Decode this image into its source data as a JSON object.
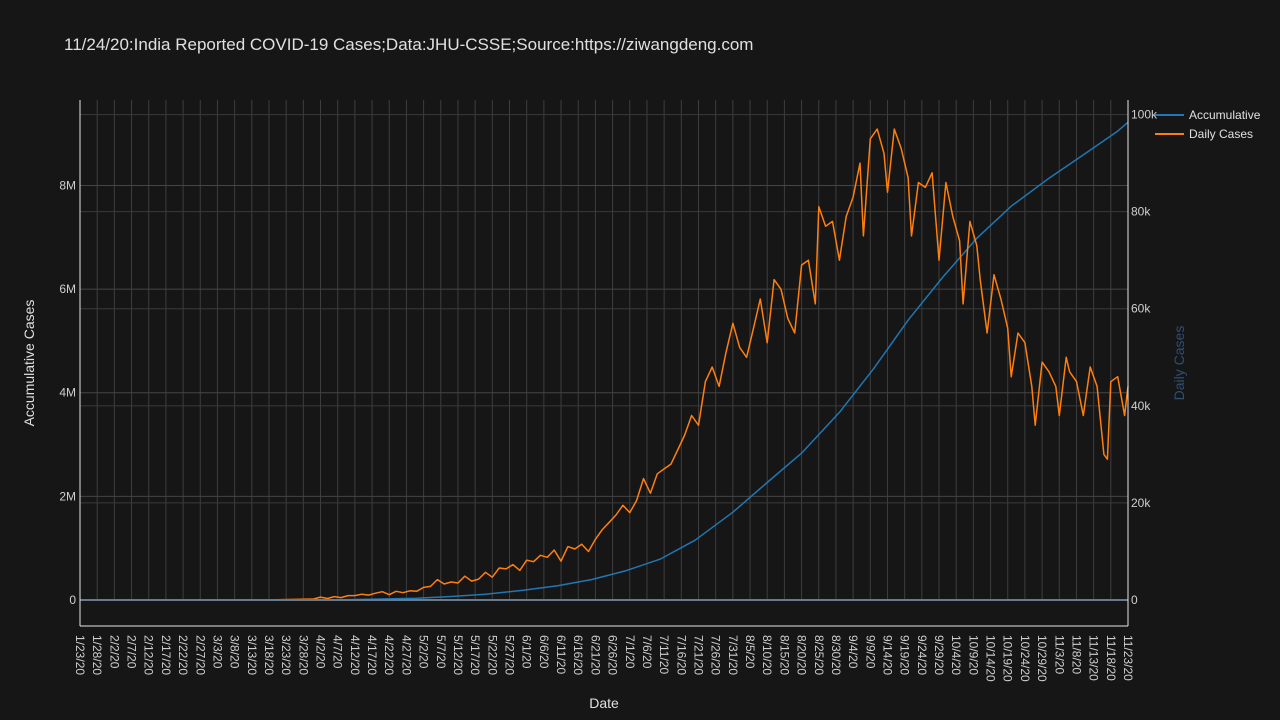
{
  "chart_data": {
    "type": "line",
    "title": "11/24/20:India Reported COVID-19 Cases;Data:JHU-CSSE;Source:https://ziwangdeng.com",
    "xlabel": "Date",
    "ylabel": "Accumulative Cases",
    "y2label": "Daily Cases",
    "x_start": "2020-01-23",
    "x_end": "2020-11-23",
    "x_tick_labels": [
      "1/23/20",
      "1/28/20",
      "2/2/20",
      "2/7/20",
      "2/12/20",
      "2/17/20",
      "2/22/20",
      "2/27/20",
      "3/3/20",
      "3/8/20",
      "3/13/20",
      "3/18/20",
      "3/23/20",
      "3/28/20",
      "4/2/20",
      "4/7/20",
      "4/12/20",
      "4/17/20",
      "4/22/20",
      "4/27/20",
      "5/2/20",
      "5/7/20",
      "5/12/20",
      "5/17/20",
      "5/22/20",
      "5/27/20",
      "6/1/20",
      "6/6/20",
      "6/11/20",
      "6/16/20",
      "6/21/20",
      "6/26/20",
      "7/1/20",
      "7/6/20",
      "7/11/20",
      "7/16/20",
      "7/21/20",
      "7/26/20",
      "7/31/20",
      "8/5/20",
      "8/10/20",
      "8/15/20",
      "8/20/20",
      "8/25/20",
      "8/30/20",
      "9/4/20",
      "9/9/20",
      "9/14/20",
      "9/19/20",
      "9/24/20",
      "9/29/20",
      "10/4/20",
      "10/9/20",
      "10/14/20",
      "10/19/20",
      "10/24/20",
      "10/29/20",
      "11/3/20",
      "11/8/20",
      "11/13/20",
      "11/18/20",
      "11/23/20"
    ],
    "y_ticks": [
      {
        "value": 0,
        "label": "0"
      },
      {
        "value": 2000000,
        "label": "2M"
      },
      {
        "value": 4000000,
        "label": "4M"
      },
      {
        "value": 6000000,
        "label": "6M"
      },
      {
        "value": 8000000,
        "label": "8M"
      }
    ],
    "y2_ticks": [
      {
        "value": 0,
        "label": "0"
      },
      {
        "value": 20000,
        "label": "20k"
      },
      {
        "value": 40000,
        "label": "40k"
      },
      {
        "value": 60000,
        "label": "60k"
      },
      {
        "value": 80000,
        "label": "80k"
      },
      {
        "value": 100000,
        "label": "100k"
      }
    ],
    "ylim": [
      0,
      9650000
    ],
    "y2lim": [
      0,
      103000
    ],
    "grid": true,
    "legend_position": "top-right",
    "series": [
      {
        "name": "Accumulative",
        "axis": "y",
        "color": "#1f77b4",
        "points": [
          [
            "2020-01-23",
            0
          ],
          [
            "2020-03-01",
            3
          ],
          [
            "2020-03-20",
            250
          ],
          [
            "2020-03-31",
            1400
          ],
          [
            "2020-04-10",
            7600
          ],
          [
            "2020-04-20",
            18500
          ],
          [
            "2020-04-30",
            35000
          ],
          [
            "2020-05-10",
            67000
          ],
          [
            "2020-05-20",
            112000
          ],
          [
            "2020-05-31",
            190000
          ],
          [
            "2020-06-10",
            276000
          ],
          [
            "2020-06-20",
            396000
          ],
          [
            "2020-06-30",
            567000
          ],
          [
            "2020-07-10",
            793000
          ],
          [
            "2020-07-20",
            1155000
          ],
          [
            "2020-07-31",
            1695000
          ],
          [
            "2020-08-10",
            2268000
          ],
          [
            "2020-08-20",
            2836000
          ],
          [
            "2020-08-31",
            3621000
          ],
          [
            "2020-09-10",
            4466000
          ],
          [
            "2020-09-20",
            5400000
          ],
          [
            "2020-09-30",
            6225000
          ],
          [
            "2020-10-10",
            6980000
          ],
          [
            "2020-10-20",
            7600000
          ],
          [
            "2020-10-31",
            8140000
          ],
          [
            "2020-11-10",
            8590000
          ],
          [
            "2020-11-20",
            9050000
          ],
          [
            "2020-11-23",
            9220000
          ]
        ]
      },
      {
        "name": "Daily Cases",
        "axis": "y2",
        "color": "#ff7f0e",
        "points": [
          [
            "2020-01-23",
            0
          ],
          [
            "2020-03-20",
            50
          ],
          [
            "2020-03-31",
            200
          ],
          [
            "2020-04-02",
            600
          ],
          [
            "2020-04-04",
            300
          ],
          [
            "2020-04-06",
            700
          ],
          [
            "2020-04-08",
            500
          ],
          [
            "2020-04-10",
            900
          ],
          [
            "2020-04-12",
            900
          ],
          [
            "2020-04-14",
            1200
          ],
          [
            "2020-04-16",
            1000
          ],
          [
            "2020-04-18",
            1400
          ],
          [
            "2020-04-20",
            1700
          ],
          [
            "2020-04-22",
            1100
          ],
          [
            "2020-04-24",
            1800
          ],
          [
            "2020-04-26",
            1500
          ],
          [
            "2020-04-28",
            1900
          ],
          [
            "2020-04-30",
            1800
          ],
          [
            "2020-05-02",
            2600
          ],
          [
            "2020-05-04",
            2800
          ],
          [
            "2020-05-06",
            4200
          ],
          [
            "2020-05-08",
            3300
          ],
          [
            "2020-05-10",
            3700
          ],
          [
            "2020-05-12",
            3500
          ],
          [
            "2020-05-14",
            4900
          ],
          [
            "2020-05-16",
            3900
          ],
          [
            "2020-05-18",
            4300
          ],
          [
            "2020-05-20",
            5700
          ],
          [
            "2020-05-22",
            4700
          ],
          [
            "2020-05-24",
            6600
          ],
          [
            "2020-05-26",
            6400
          ],
          [
            "2020-05-28",
            7300
          ],
          [
            "2020-05-30",
            6100
          ],
          [
            "2020-06-01",
            8200
          ],
          [
            "2020-06-03",
            7900
          ],
          [
            "2020-06-05",
            9200
          ],
          [
            "2020-06-07",
            8800
          ],
          [
            "2020-06-09",
            10300
          ],
          [
            "2020-06-11",
            8000
          ],
          [
            "2020-06-13",
            11000
          ],
          [
            "2020-06-15",
            10500
          ],
          [
            "2020-06-17",
            11500
          ],
          [
            "2020-06-19",
            10000
          ],
          [
            "2020-06-21",
            12500
          ],
          [
            "2020-06-23",
            14500
          ],
          [
            "2020-06-25",
            16000
          ],
          [
            "2020-06-27",
            17500
          ],
          [
            "2020-06-29",
            19500
          ],
          [
            "2020-07-01",
            18000
          ],
          [
            "2020-07-03",
            20500
          ],
          [
            "2020-07-05",
            25000
          ],
          [
            "2020-07-07",
            22000
          ],
          [
            "2020-07-09",
            26000
          ],
          [
            "2020-07-11",
            27000
          ],
          [
            "2020-07-13",
            28000
          ],
          [
            "2020-07-15",
            31000
          ],
          [
            "2020-07-17",
            34000
          ],
          [
            "2020-07-19",
            38000
          ],
          [
            "2020-07-21",
            36000
          ],
          [
            "2020-07-23",
            45000
          ],
          [
            "2020-07-25",
            48000
          ],
          [
            "2020-07-27",
            44000
          ],
          [
            "2020-07-29",
            51000
          ],
          [
            "2020-07-31",
            57000
          ],
          [
            "2020-08-02",
            52000
          ],
          [
            "2020-08-04",
            50000
          ],
          [
            "2020-08-06",
            56000
          ],
          [
            "2020-08-08",
            62000
          ],
          [
            "2020-08-10",
            53000
          ],
          [
            "2020-08-12",
            66000
          ],
          [
            "2020-08-14",
            64000
          ],
          [
            "2020-08-16",
            58000
          ],
          [
            "2020-08-18",
            55000
          ],
          [
            "2020-08-20",
            69000
          ],
          [
            "2020-08-22",
            70000
          ],
          [
            "2020-08-24",
            61000
          ],
          [
            "2020-08-25",
            81000
          ],
          [
            "2020-08-27",
            77000
          ],
          [
            "2020-08-29",
            78000
          ],
          [
            "2020-08-31",
            70000
          ],
          [
            "2020-09-02",
            79000
          ],
          [
            "2020-09-04",
            83000
          ],
          [
            "2020-09-06",
            90000
          ],
          [
            "2020-09-07",
            75000
          ],
          [
            "2020-09-09",
            95000
          ],
          [
            "2020-09-11",
            97000
          ],
          [
            "2020-09-13",
            92000
          ],
          [
            "2020-09-14",
            84000
          ],
          [
            "2020-09-16",
            97000
          ],
          [
            "2020-09-18",
            93000
          ],
          [
            "2020-09-20",
            87000
          ],
          [
            "2020-09-21",
            75000
          ],
          [
            "2020-09-23",
            86000
          ],
          [
            "2020-09-25",
            85000
          ],
          [
            "2020-09-27",
            88000
          ],
          [
            "2020-09-29",
            70000
          ],
          [
            "2020-10-01",
            86000
          ],
          [
            "2020-10-03",
            79000
          ],
          [
            "2020-10-05",
            74000
          ],
          [
            "2020-10-06",
            61000
          ],
          [
            "2020-10-08",
            78000
          ],
          [
            "2020-10-10",
            73000
          ],
          [
            "2020-10-11",
            66000
          ],
          [
            "2020-10-13",
            55000
          ],
          [
            "2020-10-15",
            67000
          ],
          [
            "2020-10-17",
            62000
          ],
          [
            "2020-10-19",
            56000
          ],
          [
            "2020-10-20",
            46000
          ],
          [
            "2020-10-22",
            55000
          ],
          [
            "2020-10-24",
            53000
          ],
          [
            "2020-10-26",
            44000
          ],
          [
            "2020-10-27",
            36000
          ],
          [
            "2020-10-29",
            49000
          ],
          [
            "2020-10-31",
            47000
          ],
          [
            "2020-11-02",
            44000
          ],
          [
            "2020-11-03",
            38000
          ],
          [
            "2020-11-05",
            50000
          ],
          [
            "2020-11-06",
            47000
          ],
          [
            "2020-11-08",
            45000
          ],
          [
            "2020-11-10",
            38000
          ],
          [
            "2020-11-12",
            48000
          ],
          [
            "2020-11-14",
            44000
          ],
          [
            "2020-11-16",
            30000
          ],
          [
            "2020-11-17",
            29000
          ],
          [
            "2020-11-18",
            45000
          ],
          [
            "2020-11-20",
            46000
          ],
          [
            "2020-11-22",
            38000
          ],
          [
            "2020-11-23",
            44000
          ]
        ]
      }
    ]
  }
}
